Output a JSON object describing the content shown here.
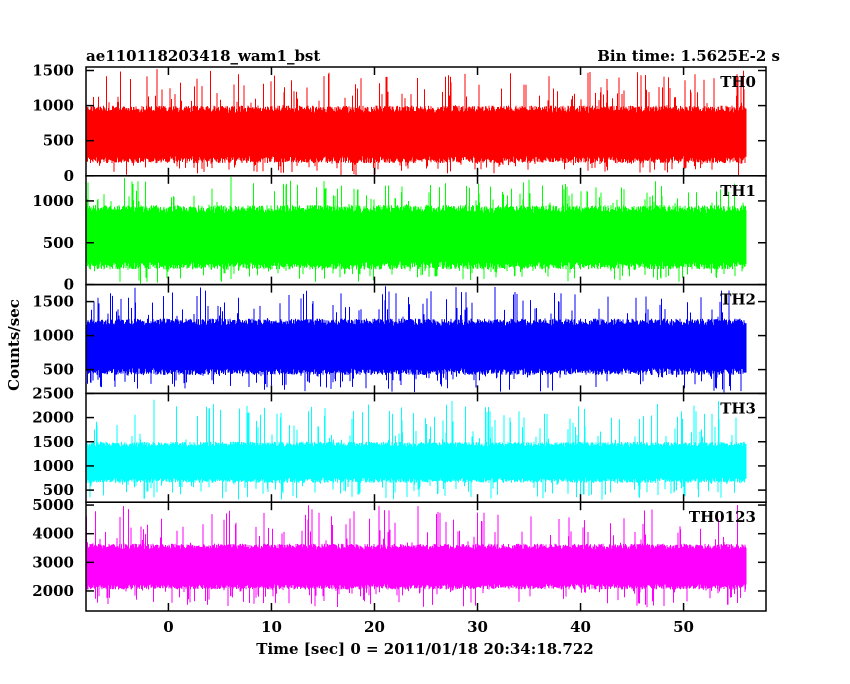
{
  "header": {
    "title": "ae110118203418_wam1_bst",
    "bin_time": "Bin time: 1.5625E-2 s"
  },
  "chart_data": {
    "type": "line",
    "xlabel": "Time [sec] 0 = 2011/01/18 20:34:18.722",
    "ylabel": "Counts/sec",
    "xlim": [
      -8,
      58
    ],
    "x_ticks": [
      0,
      10,
      20,
      30,
      40,
      50
    ],
    "x_ticks_labels": [
      "0",
      "10",
      "20",
      "30",
      "40",
      "50"
    ],
    "data_x_range": [
      -8,
      56
    ],
    "bin_time": 0.015625,
    "panels": [
      {
        "name": "TH0",
        "color": "#ff0000",
        "ylim": [
          0,
          1550
        ],
        "y_ticks": [
          0,
          500,
          1000,
          1500
        ],
        "y_ticks_labels": [
          "0",
          "500",
          "1000",
          "1500"
        ],
        "band_low": 180,
        "band_high": 1000,
        "min": 0,
        "max": 1550
      },
      {
        "name": "TH1",
        "color": "#00ff00",
        "ylim": [
          0,
          1300
        ],
        "y_ticks": [
          0,
          500,
          1000
        ],
        "y_ticks_labels": [
          "0",
          "500",
          "1000"
        ],
        "band_low": 180,
        "band_high": 950,
        "min": 0,
        "max": 1300
      },
      {
        "name": "TH2",
        "color": "#0000ff",
        "ylim": [
          150,
          1750
        ],
        "y_ticks": [
          500,
          1000,
          1500
        ],
        "y_ticks_labels": [
          "500",
          "1000",
          "1500"
        ],
        "band_low": 420,
        "band_high": 1250,
        "min": 150,
        "max": 1750
      },
      {
        "name": "TH3",
        "color": "#00ffff",
        "ylim": [
          250,
          2500
        ],
        "y_ticks": [
          500,
          1000,
          1500,
          2000,
          2500
        ],
        "y_ticks_labels": [
          "500",
          "1000",
          "1500",
          "2000",
          "2500"
        ],
        "band_low": 650,
        "band_high": 1500,
        "min": 250,
        "max": 2400
      },
      {
        "name": "TH0123",
        "color": "#ff00ff",
        "ylim": [
          1300,
          5100
        ],
        "y_ticks": [
          2000,
          3000,
          4000,
          5000
        ],
        "y_ticks_labels": [
          "2000",
          "3000",
          "4000",
          "5000"
        ],
        "band_low": 2050,
        "band_high": 3650,
        "min": 1400,
        "max": 5050
      }
    ]
  }
}
